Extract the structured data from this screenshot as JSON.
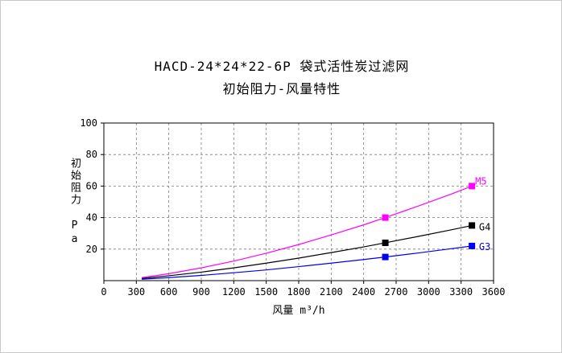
{
  "chart_data": {
    "type": "line",
    "title_line1": "HACD-24*24*22-6P 袋式活性炭过滤网",
    "title_line2": "初始阻力-风量特性",
    "xlabel": "风量  m³/h",
    "ylabel": "初始阻力 Pa",
    "xlim": [
      0,
      3600
    ],
    "ylim": [
      0,
      100
    ],
    "xticks": [
      0,
      300,
      600,
      900,
      1200,
      1500,
      1800,
      2100,
      2400,
      2700,
      3000,
      3300,
      3600
    ],
    "x_tick_labels": [
      "0",
      "300",
      "600",
      "900",
      "1200",
      "1500",
      "1800",
      "2100",
      "2400",
      "2700",
      "3000",
      "3300",
      "3600"
    ],
    "yticks": [
      20,
      40,
      60,
      80,
      100
    ],
    "y_tick_labels": [
      "20",
      "40",
      "60",
      "80",
      "100"
    ],
    "grid": "dashed",
    "grid_color": "#7a7a7a",
    "axis_color": "#000000",
    "x": [
      350,
      600,
      900,
      1200,
      1500,
      1800,
      2100,
      2400,
      2600,
      2900,
      3200,
      3400
    ],
    "series": [
      {
        "name": "G3",
        "color": "#0000ee",
        "values": [
          0.9,
          1.9,
          3.3,
          5.0,
          6.8,
          8.9,
          11.1,
          13.4,
          15,
          17.5,
          20.2,
          22
        ],
        "markers": [
          [
            2600,
            15
          ],
          [
            3400,
            22
          ]
        ],
        "label": {
          "text": "G3",
          "x": 3465,
          "y": 21.5
        }
      },
      {
        "name": "G4",
        "color": "#000000",
        "values": [
          1.4,
          3.1,
          5.4,
          8.1,
          11.1,
          14.3,
          17.8,
          21.4,
          24,
          28,
          32.1,
          35
        ],
        "markers": [
          [
            2600,
            24
          ],
          [
            3400,
            35
          ]
        ],
        "label": {
          "text": "G4",
          "x": 3465,
          "y": 34
        }
      },
      {
        "name": "M5",
        "color": "#ff00ff",
        "values": [
          1.9,
          4.4,
          8.1,
          12.4,
          17.4,
          22.9,
          29.0,
          35.4,
          40,
          47.2,
          54.7,
          60
        ],
        "markers": [
          [
            2600,
            40
          ],
          [
            3400,
            60
          ]
        ],
        "label": {
          "text": "M5",
          "x": 3430,
          "y": 63
        }
      }
    ]
  }
}
